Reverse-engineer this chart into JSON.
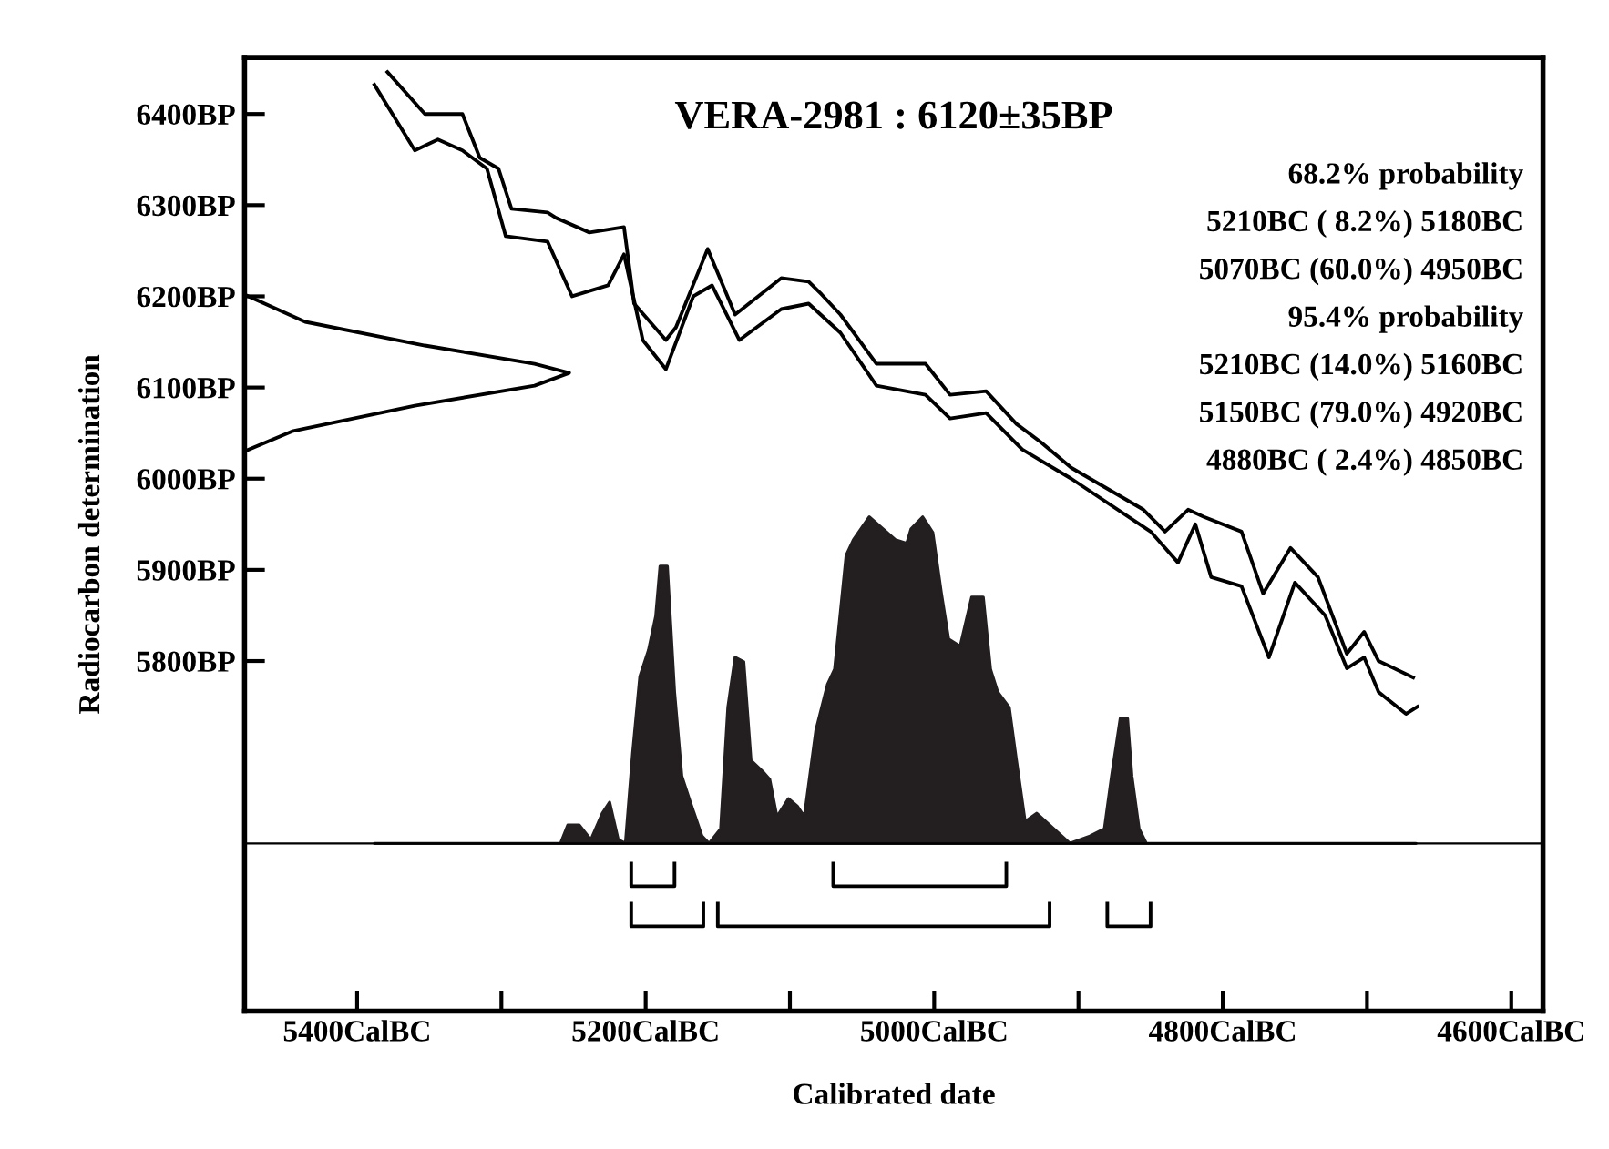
{
  "chart_data": {
    "type": "line",
    "title": "VERA-2981 : 6120±35BP",
    "xlabel": "Calibrated date",
    "ylabel": "Radiocarbon determination",
    "annotations": [
      "68.2% probability",
      "5210BC ( 8.2%) 5180BC",
      "5070BC (60.0%) 4950BC",
      "95.4% probability",
      "5210BC (14.0%) 5160BC",
      "5150BC (79.0%) 4920BC",
      "4880BC ( 2.4%) 4850BC"
    ],
    "xlim": [
      5478,
      4578
    ],
    "ylim": [
      5416,
      6462
    ],
    "xticks": [
      {
        "value": 5400,
        "label": "5400CalBC"
      },
      {
        "value": 5300,
        "label": null
      },
      {
        "value": 5200,
        "label": "5200CalBC"
      },
      {
        "value": 5100,
        "label": null
      },
      {
        "value": 5000,
        "label": "5000CalBC"
      },
      {
        "value": 4900,
        "label": null
      },
      {
        "value": 4800,
        "label": "4800CalBC"
      },
      {
        "value": 4700,
        "label": null
      },
      {
        "value": 4600,
        "label": "4600CalBC"
      }
    ],
    "yticks": [
      {
        "value": 5800,
        "label": "5800BP"
      },
      {
        "value": 5900,
        "label": "5900BP"
      },
      {
        "value": 6000,
        "label": "6000BP"
      },
      {
        "value": 6100,
        "label": "6100BP"
      },
      {
        "value": 6200,
        "label": "6200BP"
      },
      {
        "value": 6300,
        "label": "6300BP"
      },
      {
        "value": 6400,
        "label": "6400BP"
      }
    ],
    "grid": false,
    "legend": false,
    "ref_lines": [
      {
        "axis": "y",
        "value": 5600,
        "color": "#000000"
      }
    ],
    "series": [
      {
        "color": "#000000",
        "x": [
          5379,
          5353,
          5327,
          5315,
          5302,
          5293,
          5268,
          5262,
          5239,
          5215,
          5208,
          5186,
          5179,
          5157,
          5138,
          5106,
          5087,
          5078,
          5065,
          5040,
          5006,
          4989,
          4964,
          4943,
          4926,
          4905,
          4855,
          4840,
          4824,
          4813,
          4787,
          4772,
          4753,
          4734,
          4714,
          4702,
          4692,
          4668
        ],
        "values": [
          6446,
          6400,
          6400,
          6352,
          6340,
          6296,
          6292,
          6286,
          6270,
          6276,
          6192,
          6152,
          6166,
          6252,
          6180,
          6220,
          6216,
          6202,
          6180,
          6126,
          6126,
          6092,
          6096,
          6060,
          6040,
          6012,
          5966,
          5942,
          5966,
          5958,
          5942,
          5874,
          5924,
          5892,
          5808,
          5832,
          5800,
          5782
        ]
      },
      {
        "color": "#000000",
        "x": [
          5388,
          5360,
          5344,
          5327,
          5310,
          5297,
          5268,
          5251,
          5226,
          5215,
          5202,
          5186,
          5167,
          5154,
          5135,
          5106,
          5087,
          5065,
          5040,
          5006,
          4989,
          4964,
          4939,
          4905,
          4850,
          4831,
          4819,
          4808,
          4787,
          4768,
          4750,
          4729,
          4714,
          4702,
          4692,
          4673,
          4665
        ],
        "values": [
          6432,
          6360,
          6372,
          6360,
          6340,
          6266,
          6260,
          6200,
          6212,
          6246,
          6152,
          6120,
          6200,
          6212,
          6152,
          6186,
          6192,
          6160,
          6102,
          6092,
          6066,
          6072,
          6032,
          6000,
          5942,
          5908,
          5950,
          5892,
          5882,
          5804,
          5886,
          5850,
          5792,
          5804,
          5766,
          5742,
          5750
        ]
      },
      {
        "type": "line",
        "color": "#000000",
        "x": [
          5478,
          5436,
          5353,
          5277,
          5253,
          5277,
          5360,
          5445,
          5478
        ],
        "values": [
          6202,
          6172,
          6146,
          6126,
          6116,
          6102,
          6080,
          6052,
          6030
        ]
      },
      {
        "type": "area",
        "color": "#231f20",
        "x": [
          5388,
          5259,
          5254,
          5246,
          5238,
          5230,
          5225,
          5219,
          5214,
          5209,
          5204,
          5198,
          5193,
          5190,
          5185,
          5180,
          5175,
          5169,
          5161,
          5156,
          5148,
          5143,
          5138,
          5132,
          5127,
          5119,
          5114,
          5109,
          5101,
          5095,
          5090,
          5082,
          5074,
          5069,
          5061,
          5056,
          5045,
          5027,
          5019,
          5016,
          5008,
          5001,
          4995,
          4990,
          4982,
          4974,
          4966,
          4961,
          4956,
          4948,
          4943,
          4937,
          4929,
          4906,
          4892,
          4882,
          4877,
          4871,
          4866,
          4863,
          4858,
          4853,
          4666
        ],
        "values": [
          5600,
          5600,
          5620,
          5620,
          5604,
          5633,
          5645,
          5604,
          5600,
          5699,
          5783,
          5812,
          5849,
          5904,
          5904,
          5766,
          5674,
          5645,
          5608,
          5600,
          5616,
          5749,
          5804,
          5799,
          5691,
          5679,
          5670,
          5629,
          5649,
          5641,
          5629,
          5724,
          5774,
          5791,
          5916,
          5933,
          5958,
          5933,
          5929,
          5945,
          5958,
          5941,
          5874,
          5824,
          5816,
          5870,
          5870,
          5791,
          5766,
          5749,
          5691,
          5624,
          5633,
          5600,
          5608,
          5616,
          5674,
          5737,
          5737,
          5674,
          5616,
          5600,
          5600
        ]
      },
      {
        "type": "line",
        "color": "#000000",
        "x": [
          5210,
          5210,
          5180,
          5180
        ],
        "values": [
          5578,
          5553,
          5553,
          5578
        ]
      },
      {
        "type": "line",
        "color": "#000000",
        "x": [
          5070,
          5070,
          4950,
          4950
        ],
        "values": [
          5578,
          5553,
          5553,
          5578
        ]
      },
      {
        "type": "line",
        "color": "#000000",
        "x": [
          5210,
          5210,
          5160,
          5160
        ],
        "values": [
          5534,
          5509,
          5509,
          5534
        ]
      },
      {
        "type": "line",
        "color": "#000000",
        "x": [
          5150,
          5150,
          4920,
          4920
        ],
        "values": [
          5534,
          5509,
          5509,
          5534
        ]
      },
      {
        "type": "line",
        "color": "#000000",
        "x": [
          4880,
          4880,
          4850,
          4850
        ],
        "values": [
          5534,
          5509,
          5509,
          5534
        ]
      }
    ]
  }
}
